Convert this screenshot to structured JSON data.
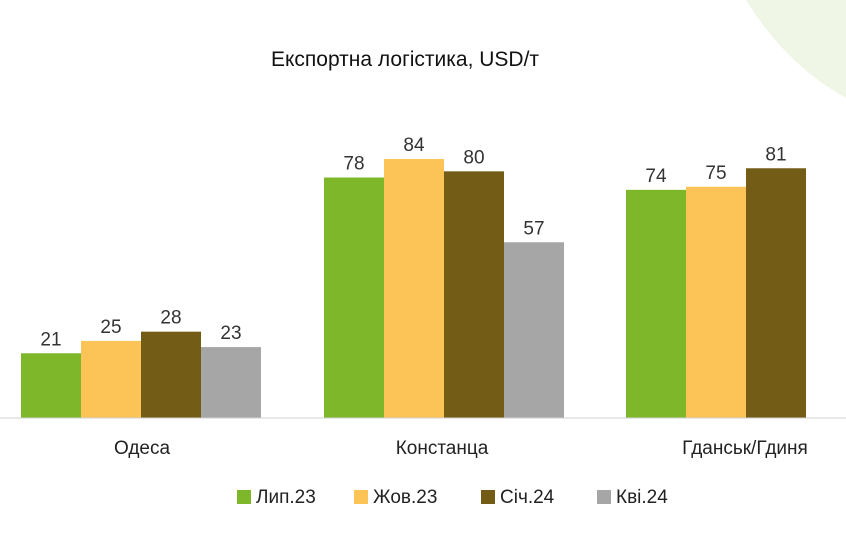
{
  "chart_data": {
    "type": "bar",
    "title": "Експортна логістика, USD/т",
    "xlabel": "",
    "ylabel": "",
    "categories": [
      "Одеса",
      "Констанца",
      "Гданськ/Гдиня"
    ],
    "series": [
      {
        "name": "Лип.23",
        "color": "#7fb72a",
        "values": [
          21,
          78,
          74
        ]
      },
      {
        "name": "Жов.23",
        "color": "#fcc457",
        "values": [
          25,
          84,
          75
        ]
      },
      {
        "name": "Січ.24",
        "color": "#735d16",
        "values": [
          28,
          80,
          81
        ]
      },
      {
        "name": "Кві.24",
        "color": "#a6a6a6",
        "values": [
          23,
          57,
          null
        ]
      }
    ],
    "ylim": [
      0,
      84
    ],
    "grid": false,
    "legend_position": "bottom",
    "data_labels": true
  }
}
